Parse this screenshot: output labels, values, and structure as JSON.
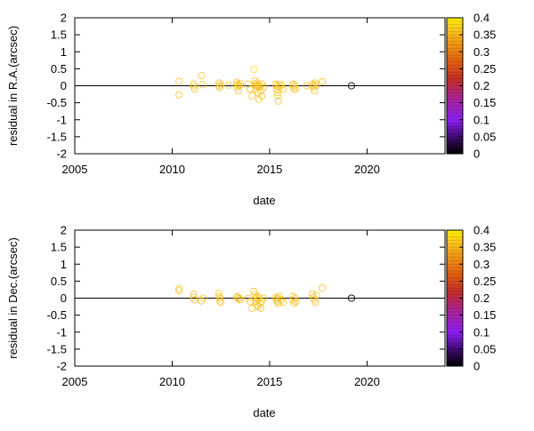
{
  "chart_data": [
    {
      "type": "scatter",
      "xlabel": "date",
      "ylabel": "residual in R.A.(arcsec)",
      "xlim": [
        2005,
        2024
      ],
      "ylim": [
        -2,
        2
      ],
      "x_ticks": [
        "2005",
        "2010",
        "2015",
        "2020"
      ],
      "y_ticks": [
        "2",
        "1.5",
        "1",
        "0.5",
        "0",
        "-0.5",
        "-1",
        "-1.5",
        "-2"
      ],
      "colorbar_ticks": [
        "0.4",
        "0.35",
        "0.3",
        "0.25",
        "0.2",
        "0.15",
        "0.1",
        "0.05",
        "0"
      ],
      "colorbar_range": [
        0,
        0.4
      ],
      "reference_line_y": 0,
      "points": [
        {
          "x": 2010.35,
          "y": 0.13,
          "c": 0.36
        },
        {
          "x": 2010.35,
          "y": -0.27,
          "c": 0.36
        },
        {
          "x": 2011.1,
          "y": 0.05,
          "c": 0.36
        },
        {
          "x": 2011.1,
          "y": -0.02,
          "c": 0.36
        },
        {
          "x": 2011.15,
          "y": -0.1,
          "c": 0.36
        },
        {
          "x": 2011.5,
          "y": 0.3,
          "c": 0.36
        },
        {
          "x": 2011.55,
          "y": 0.03,
          "c": 0.36
        },
        {
          "x": 2012.4,
          "y": 0.08,
          "c": 0.36
        },
        {
          "x": 2012.4,
          "y": 0.0,
          "c": 0.36
        },
        {
          "x": 2012.45,
          "y": -0.05,
          "c": 0.36
        },
        {
          "x": 2012.5,
          "y": 0.03,
          "c": 0.36
        },
        {
          "x": 2012.9,
          "y": 0.02,
          "c": 0.36
        },
        {
          "x": 2013.3,
          "y": 0.1,
          "c": 0.36
        },
        {
          "x": 2013.35,
          "y": 0.05,
          "c": 0.36
        },
        {
          "x": 2013.35,
          "y": -0.05,
          "c": 0.36
        },
        {
          "x": 2013.4,
          "y": 0.02,
          "c": 0.36
        },
        {
          "x": 2013.4,
          "y": -0.15,
          "c": 0.36
        },
        {
          "x": 2013.45,
          "y": 0.0,
          "c": 0.36
        },
        {
          "x": 2013.5,
          "y": 0.07,
          "c": 0.36
        },
        {
          "x": 2013.9,
          "y": 0.05,
          "c": 0.36
        },
        {
          "x": 2014.0,
          "y": -0.1,
          "c": 0.36
        },
        {
          "x": 2014.1,
          "y": -0.3,
          "c": 0.36
        },
        {
          "x": 2014.2,
          "y": 0.48,
          "c": 0.38
        },
        {
          "x": 2014.25,
          "y": 0.15,
          "c": 0.36
        },
        {
          "x": 2014.25,
          "y": 0.05,
          "c": 0.36
        },
        {
          "x": 2014.3,
          "y": 0.0,
          "c": 0.36
        },
        {
          "x": 2014.3,
          "y": -0.1,
          "c": 0.36
        },
        {
          "x": 2014.35,
          "y": 0.08,
          "c": 0.36
        },
        {
          "x": 2014.35,
          "y": -0.02,
          "c": 0.36
        },
        {
          "x": 2014.4,
          "y": 0.02,
          "c": 0.36
        },
        {
          "x": 2014.4,
          "y": -0.2,
          "c": 0.36
        },
        {
          "x": 2014.45,
          "y": -0.05,
          "c": 0.36
        },
        {
          "x": 2014.45,
          "y": -0.4,
          "c": 0.36
        },
        {
          "x": 2014.5,
          "y": 0.0,
          "c": 0.36
        },
        {
          "x": 2014.55,
          "y": -0.15,
          "c": 0.36
        },
        {
          "x": 2014.6,
          "y": 0.05,
          "c": 0.36
        },
        {
          "x": 2014.6,
          "y": -0.3,
          "c": 0.36
        },
        {
          "x": 2014.7,
          "y": -0.05,
          "c": 0.36
        },
        {
          "x": 2015.3,
          "y": 0.05,
          "c": 0.36
        },
        {
          "x": 2015.35,
          "y": 0.0,
          "c": 0.36
        },
        {
          "x": 2015.35,
          "y": -0.1,
          "c": 0.36
        },
        {
          "x": 2015.4,
          "y": -0.2,
          "c": 0.36
        },
        {
          "x": 2015.4,
          "y": -0.3,
          "c": 0.36
        },
        {
          "x": 2015.45,
          "y": -0.45,
          "c": 0.36
        },
        {
          "x": 2015.5,
          "y": 0.03,
          "c": 0.36
        },
        {
          "x": 2015.5,
          "y": -0.05,
          "c": 0.36
        },
        {
          "x": 2015.6,
          "y": 0.02,
          "c": 0.36
        },
        {
          "x": 2015.7,
          "y": -0.1,
          "c": 0.36
        },
        {
          "x": 2016.2,
          "y": 0.05,
          "c": 0.36
        },
        {
          "x": 2016.2,
          "y": -0.02,
          "c": 0.36
        },
        {
          "x": 2016.25,
          "y": -0.1,
          "c": 0.36
        },
        {
          "x": 2016.3,
          "y": 0.02,
          "c": 0.36
        },
        {
          "x": 2016.35,
          "y": -0.08,
          "c": 0.36
        },
        {
          "x": 2016.9,
          "y": 0.0,
          "c": 0.36
        },
        {
          "x": 2017.2,
          "y": 0.05,
          "c": 0.36
        },
        {
          "x": 2017.25,
          "y": 0.0,
          "c": 0.36
        },
        {
          "x": 2017.25,
          "y": -0.05,
          "c": 0.36
        },
        {
          "x": 2017.3,
          "y": -0.15,
          "c": 0.36
        },
        {
          "x": 2017.35,
          "y": 0.08,
          "c": 0.36
        },
        {
          "x": 2017.4,
          "y": 0.02,
          "c": 0.36
        },
        {
          "x": 2017.7,
          "y": 0.12,
          "c": 0.36
        },
        {
          "x": 2019.2,
          "y": 0.0,
          "c": 0.0
        }
      ]
    },
    {
      "type": "scatter",
      "xlabel": "date",
      "ylabel": "residual in Dec.(arcsec)",
      "xlim": [
        2005,
        2024
      ],
      "ylim": [
        -2,
        2
      ],
      "x_ticks": [
        "2005",
        "2010",
        "2015",
        "2020"
      ],
      "y_ticks": [
        "2",
        "1.5",
        "1",
        "0.5",
        "0",
        "-0.5",
        "-1",
        "-1.5",
        "-2"
      ],
      "colorbar_ticks": [
        "0.4",
        "0.35",
        "0.3",
        "0.25",
        "0.2",
        "0.15",
        "0.1",
        "0.05",
        "0"
      ],
      "colorbar_range": [
        0,
        0.4
      ],
      "reference_line_y": 0,
      "points": [
        {
          "x": 2010.35,
          "y": 0.28,
          "c": 0.36
        },
        {
          "x": 2010.35,
          "y": 0.22,
          "c": 0.36
        },
        {
          "x": 2011.1,
          "y": 0.12,
          "c": 0.36
        },
        {
          "x": 2011.1,
          "y": 0.02,
          "c": 0.36
        },
        {
          "x": 2011.15,
          "y": -0.05,
          "c": 0.36
        },
        {
          "x": 2011.5,
          "y": -0.08,
          "c": 0.36
        },
        {
          "x": 2011.6,
          "y": 0.0,
          "c": 0.36
        },
        {
          "x": 2012.4,
          "y": 0.15,
          "c": 0.36
        },
        {
          "x": 2012.4,
          "y": 0.05,
          "c": 0.36
        },
        {
          "x": 2012.45,
          "y": 0.0,
          "c": 0.36
        },
        {
          "x": 2012.45,
          "y": -0.08,
          "c": 0.36
        },
        {
          "x": 2012.5,
          "y": -0.12,
          "c": 0.36
        },
        {
          "x": 2013.3,
          "y": 0.02,
          "c": 0.36
        },
        {
          "x": 2013.35,
          "y": 0.05,
          "c": 0.36
        },
        {
          "x": 2013.4,
          "y": -0.02,
          "c": 0.36
        },
        {
          "x": 2013.45,
          "y": 0.0,
          "c": 0.36
        },
        {
          "x": 2013.5,
          "y": -0.05,
          "c": 0.36
        },
        {
          "x": 2013.9,
          "y": 0.0,
          "c": 0.36
        },
        {
          "x": 2014.0,
          "y": -0.1,
          "c": 0.36
        },
        {
          "x": 2014.1,
          "y": -0.3,
          "c": 0.36
        },
        {
          "x": 2014.2,
          "y": 0.2,
          "c": 0.36
        },
        {
          "x": 2014.25,
          "y": 0.1,
          "c": 0.36
        },
        {
          "x": 2014.3,
          "y": 0.0,
          "c": 0.36
        },
        {
          "x": 2014.3,
          "y": -0.1,
          "c": 0.36
        },
        {
          "x": 2014.35,
          "y": 0.05,
          "c": 0.36
        },
        {
          "x": 2014.35,
          "y": -0.2,
          "c": 0.36
        },
        {
          "x": 2014.4,
          "y": -0.05,
          "c": 0.36
        },
        {
          "x": 2014.4,
          "y": -0.25,
          "c": 0.36
        },
        {
          "x": 2014.45,
          "y": 0.02,
          "c": 0.36
        },
        {
          "x": 2014.5,
          "y": -0.15,
          "c": 0.36
        },
        {
          "x": 2014.55,
          "y": -0.3,
          "c": 0.36
        },
        {
          "x": 2014.6,
          "y": -0.1,
          "c": 0.36
        },
        {
          "x": 2014.7,
          "y": 0.0,
          "c": 0.36
        },
        {
          "x": 2015.3,
          "y": 0.02,
          "c": 0.36
        },
        {
          "x": 2015.35,
          "y": -0.05,
          "c": 0.36
        },
        {
          "x": 2015.4,
          "y": -0.1,
          "c": 0.36
        },
        {
          "x": 2015.4,
          "y": 0.0,
          "c": 0.36
        },
        {
          "x": 2015.45,
          "y": -0.15,
          "c": 0.36
        },
        {
          "x": 2015.5,
          "y": 0.05,
          "c": 0.36
        },
        {
          "x": 2015.6,
          "y": -0.05,
          "c": 0.36
        },
        {
          "x": 2015.7,
          "y": -0.12,
          "c": 0.36
        },
        {
          "x": 2016.2,
          "y": 0.05,
          "c": 0.36
        },
        {
          "x": 2016.2,
          "y": -0.05,
          "c": 0.36
        },
        {
          "x": 2016.25,
          "y": -0.15,
          "c": 0.36
        },
        {
          "x": 2016.3,
          "y": 0.0,
          "c": 0.36
        },
        {
          "x": 2016.35,
          "y": -0.1,
          "c": 0.36
        },
        {
          "x": 2017.2,
          "y": 0.12,
          "c": 0.36
        },
        {
          "x": 2017.25,
          "y": 0.02,
          "c": 0.36
        },
        {
          "x": 2017.3,
          "y": -0.05,
          "c": 0.36
        },
        {
          "x": 2017.35,
          "y": -0.12,
          "c": 0.36
        },
        {
          "x": 2017.4,
          "y": 0.08,
          "c": 0.36
        },
        {
          "x": 2017.7,
          "y": 0.3,
          "c": 0.36
        },
        {
          "x": 2019.2,
          "y": 0.0,
          "c": 0.0
        }
      ]
    }
  ],
  "colors": {
    "gradient_stops": [
      "#000000",
      "#5a0a8c",
      "#9b1bf0",
      "#a822a0",
      "#c8282a",
      "#e85a10",
      "#f59a12",
      "#ffd21e",
      "#fff000"
    ],
    "axis": "#000000",
    "reference_line": "#000000"
  }
}
